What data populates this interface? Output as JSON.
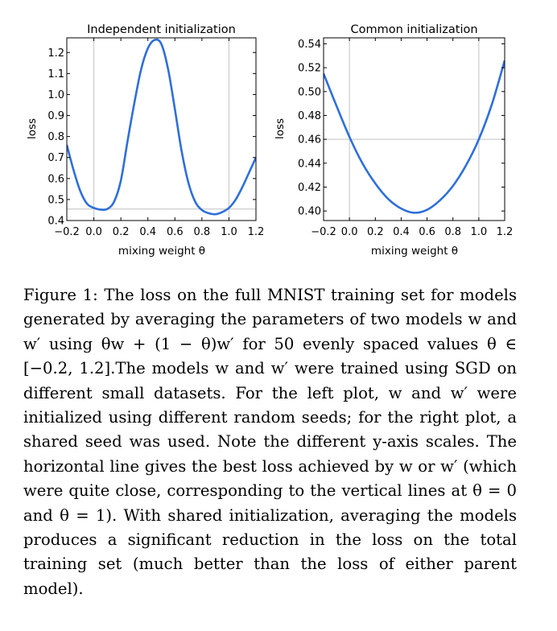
{
  "chart_data": [
    {
      "type": "line",
      "title": "Independent initialization",
      "xlabel": "mixing weight θ",
      "ylabel": "loss",
      "xlim": [
        -0.2,
        1.2
      ],
      "ylim": [
        0.4,
        1.27
      ],
      "xticks": [
        -0.2,
        0.0,
        0.2,
        0.4,
        0.6,
        0.8,
        1.0,
        1.2
      ],
      "xtick_labels": [
        "−0.2",
        "0.0",
        "0.2",
        "0.4",
        "0.6",
        "0.8",
        "1.0",
        "1.2"
      ],
      "yticks": [
        0.4,
        0.5,
        0.6,
        0.7,
        0.8,
        0.9,
        1.0,
        1.1,
        1.2
      ],
      "ytick_labels": [
        "0.4",
        "0.5",
        "0.6",
        "0.7",
        "0.8",
        "0.9",
        "1.0",
        "1.1",
        "1.2"
      ],
      "vlines": [
        0.0,
        1.0
      ],
      "hline": 0.455,
      "x": [
        -0.2,
        -0.15,
        -0.1,
        -0.05,
        0.0,
        0.05,
        0.1,
        0.15,
        0.2,
        0.25,
        0.3,
        0.35,
        0.4,
        0.45,
        0.5,
        0.55,
        0.6,
        0.65,
        0.7,
        0.75,
        0.8,
        0.85,
        0.9,
        0.95,
        1.0,
        1.05,
        1.1,
        1.15,
        1.2
      ],
      "values": [
        0.76,
        0.64,
        0.54,
        0.48,
        0.46,
        0.452,
        0.455,
        0.49,
        0.59,
        0.78,
        0.96,
        1.12,
        1.22,
        1.26,
        1.24,
        1.12,
        0.93,
        0.73,
        0.58,
        0.49,
        0.45,
        0.435,
        0.43,
        0.44,
        0.46,
        0.5,
        0.56,
        0.63,
        0.7
      ]
    },
    {
      "type": "line",
      "title": "Common initialization",
      "xlabel": "mixing weight θ",
      "ylabel": "loss",
      "xlim": [
        -0.2,
        1.2
      ],
      "ylim": [
        0.392,
        0.545
      ],
      "xticks": [
        -0.2,
        0.0,
        0.2,
        0.4,
        0.6,
        0.8,
        1.0,
        1.2
      ],
      "xtick_labels": [
        "−0.2",
        "0.0",
        "0.2",
        "0.4",
        "0.6",
        "0.8",
        "1.0",
        "1.2"
      ],
      "yticks": [
        0.4,
        0.42,
        0.44,
        0.46,
        0.48,
        0.5,
        0.52,
        0.54
      ],
      "ytick_labels": [
        "0.40",
        "0.42",
        "0.44",
        "0.46",
        "0.48",
        "0.50",
        "0.52",
        "0.54"
      ],
      "vlines": [
        0.0,
        1.0
      ],
      "hline": 0.46,
      "x": [
        -0.2,
        -0.1,
        0.0,
        0.1,
        0.2,
        0.3,
        0.4,
        0.5,
        0.6,
        0.7,
        0.8,
        0.9,
        1.0,
        1.1,
        1.2
      ],
      "values": [
        0.515,
        0.488,
        0.462,
        0.44,
        0.423,
        0.41,
        0.402,
        0.3985,
        0.401,
        0.409,
        0.421,
        0.438,
        0.46,
        0.489,
        0.526
      ]
    }
  ],
  "caption": {
    "label": "Figure 1:",
    "text": "The loss on the full MNIST training set for models generated by averaging the parameters of two models w and w′ using θw + (1 − θ)w′ for 50 evenly spaced values θ ∈ [−0.2, 1.2].The models w and w′ were trained using SGD on different small datasets. For the left plot, w and w′ were initialized using different random seeds; for the right plot, a shared seed was used. Note the different y-axis scales. The horizontal line gives the best loss achieved by w or w′ (which were quite close, corresponding to the vertical lines at θ = 0 and θ = 1). With shared initialization, averaging the models produces a significant reduction in the loss on the total training set (much better than the loss of either parent model)."
  }
}
